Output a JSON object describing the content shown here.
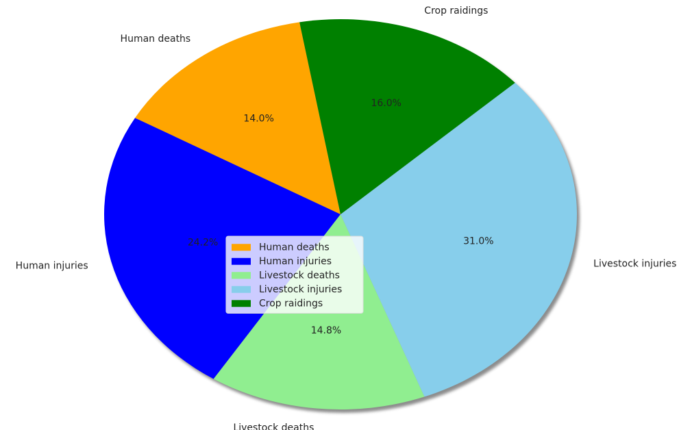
{
  "chart_data": {
    "type": "pie",
    "categories": [
      "Human deaths",
      "Human injuries",
      "Livestock deaths",
      "Livestock injuries",
      "Crop raidings"
    ],
    "values": [
      14.0,
      24.2,
      14.8,
      31.0,
      16.0
    ],
    "value_labels": [
      "14.0%",
      "24.2%",
      "14.8%",
      "31.0%",
      "16.0%"
    ],
    "colors": [
      "#ffa500",
      "#0000ff",
      "#90ee90",
      "#87ceeb",
      "#008000"
    ],
    "legend": "center"
  }
}
